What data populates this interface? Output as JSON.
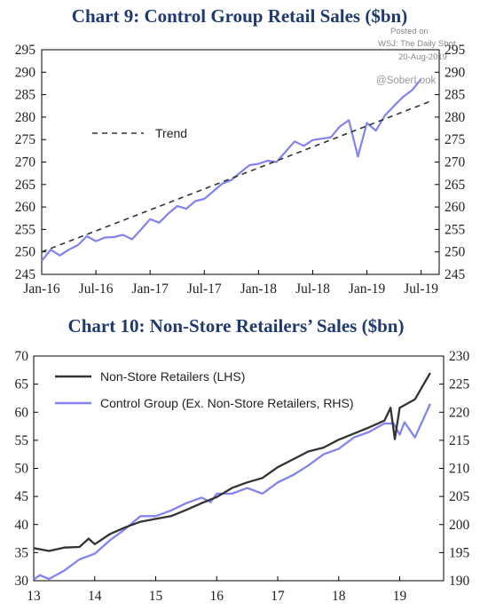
{
  "source_lines": [
    "Posted on",
    "WSJ: The Daily Shot",
    "20-Aug-2019",
    "@SoberLook"
  ],
  "chart_data": [
    {
      "type": "line",
      "title": "Chart 9: Control Group Retail Sales ($bn)",
      "xlabel": "",
      "ylabel": "",
      "x_ticks": [
        "Jan-16",
        "Jul-16",
        "Jan-17",
        "Jul-17",
        "Jan-18",
        "Jul-18",
        "Jan-19",
        "Jul-19"
      ],
      "y_ticks": [
        245,
        250,
        255,
        260,
        265,
        270,
        275,
        280,
        285,
        290,
        295
      ],
      "ylim": [
        245,
        295
      ],
      "y2_ticks": [
        245,
        250,
        255,
        260,
        265,
        270,
        275,
        280,
        285,
        290,
        295
      ],
      "y2lim": [
        245,
        295
      ],
      "legend_position": "left-middle",
      "series": [
        {
          "name": "",
          "color": "#8282f0",
          "x": [
            "Jan-16",
            "Feb-16",
            "Mar-16",
            "Apr-16",
            "May-16",
            "Jun-16",
            "Jul-16",
            "Aug-16",
            "Sep-16",
            "Oct-16",
            "Nov-16",
            "Dec-16",
            "Jan-17",
            "Feb-17",
            "Mar-17",
            "Apr-17",
            "May-17",
            "Jun-17",
            "Jul-17",
            "Aug-17",
            "Sep-17",
            "Oct-17",
            "Nov-17",
            "Dec-17",
            "Jan-18",
            "Feb-18",
            "Mar-18",
            "Apr-18",
            "May-18",
            "Jun-18",
            "Jul-18",
            "Aug-18",
            "Sep-18",
            "Oct-18",
            "Nov-18",
            "Dec-18",
            "Jan-19",
            "Feb-19",
            "Mar-19",
            "Apr-19",
            "May-19",
            "Jun-19",
            "Jul-19"
          ],
          "values": [
            248.0,
            250.5,
            249.2,
            250.5,
            251.5,
            253.5,
            252.4,
            253.2,
            253.3,
            253.8,
            252.8,
            255.0,
            257.3,
            256.5,
            258.5,
            260.2,
            259.6,
            261.3,
            261.8,
            263.5,
            265.2,
            266.0,
            267.7,
            269.3,
            269.6,
            270.3,
            270.0,
            272.3,
            274.6,
            273.6,
            274.9,
            275.2,
            275.5,
            277.9,
            279.3,
            271.2,
            278.7,
            277.0,
            280.4,
            282.5,
            284.5,
            286.0,
            288.5
          ]
        },
        {
          "name": "Trend",
          "color": "#333333",
          "dashed": true,
          "x": [
            "Jan-16",
            "Aug-19"
          ],
          "values": [
            250.0,
            283.5
          ]
        }
      ]
    },
    {
      "type": "line",
      "title": "Chart 10: Non-Store Retailers’ Sales ($bn)",
      "xlabel": "",
      "ylabel": "",
      "x_ticks": [
        "13",
        "14",
        "15",
        "16",
        "17",
        "18",
        "19"
      ],
      "y_ticks": [
        30,
        35,
        40,
        45,
        50,
        55,
        60,
        65,
        70
      ],
      "ylim": [
        30,
        70
      ],
      "y2_ticks": [
        190,
        195,
        200,
        205,
        210,
        215,
        220,
        225,
        230
      ],
      "y2lim": [
        190,
        230
      ],
      "legend_position": "top-left",
      "series": [
        {
          "name": "Non-Store Retailers (LHS)",
          "color": "#333333",
          "axis": "left",
          "x": [
            13.0,
            13.25,
            13.5,
            13.75,
            13.9,
            14.0,
            14.25,
            14.5,
            14.75,
            15.0,
            15.25,
            15.5,
            15.75,
            16.0,
            16.25,
            16.5,
            16.75,
            17.0,
            17.25,
            17.5,
            17.75,
            18.0,
            18.25,
            18.5,
            18.75,
            18.85,
            18.92,
            19.0,
            19.25,
            19.5
          ],
          "values": [
            35.8,
            35.3,
            35.9,
            36.0,
            37.5,
            36.5,
            38.3,
            39.5,
            40.5,
            41.0,
            41.5,
            42.6,
            43.8,
            44.9,
            46.5,
            47.5,
            48.3,
            50.2,
            51.6,
            53.0,
            53.7,
            55.1,
            56.2,
            57.3,
            58.5,
            60.8,
            55.2,
            60.8,
            62.3,
            67.0
          ]
        },
        {
          "name": "Control Group (Ex. Non-Store Retailers, RHS)",
          "color": "#8282f0",
          "axis": "right",
          "x": [
            13.0,
            13.1,
            13.25,
            13.5,
            13.75,
            14.0,
            14.25,
            14.5,
            14.75,
            15.0,
            15.25,
            15.5,
            15.75,
            15.9,
            16.0,
            16.25,
            16.5,
            16.75,
            17.0,
            17.25,
            17.5,
            17.75,
            18.0,
            18.25,
            18.5,
            18.75,
            18.9,
            19.0,
            19.08,
            19.25,
            19.5
          ],
          "values": [
            190.2,
            191.0,
            190.3,
            191.8,
            193.8,
            194.8,
            197.2,
            199.2,
            201.5,
            201.5,
            202.5,
            203.8,
            204.8,
            204.0,
            205.5,
            205.5,
            206.5,
            205.5,
            207.5,
            208.8,
            210.5,
            212.5,
            213.5,
            215.5,
            216.5,
            218.0,
            218.0,
            216.0,
            218.2,
            215.5,
            221.5
          ]
        }
      ]
    }
  ]
}
